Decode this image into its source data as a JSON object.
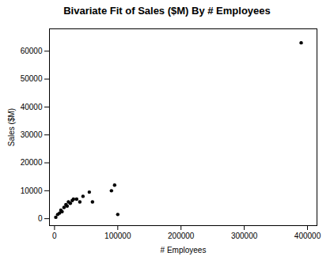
{
  "chart_data": {
    "type": "scatter",
    "title": "Bivariate Fit of Sales ($M) By # Employees",
    "xlabel": "# Employees",
    "ylabel": "Sales ($M)",
    "x": [
      2000,
      5000,
      8000,
      10000,
      12000,
      15000,
      18000,
      20000,
      22000,
      25000,
      28000,
      30000,
      35000,
      40000,
      45000,
      55000,
      60000,
      90000,
      95000,
      100000,
      390000
    ],
    "values": [
      500,
      1500,
      2000,
      3000,
      2500,
      4000,
      5000,
      4500,
      6000,
      5500,
      6500,
      7000,
      7000,
      6000,
      8000,
      9500,
      6000,
      10000,
      12000,
      1500,
      63000
    ],
    "color": "#000000",
    "xlim": [
      -8000,
      415000
    ],
    "ylim": [
      -2500,
      68000
    ],
    "xticks": [
      0,
      100000,
      200000,
      300000,
      400000
    ],
    "yticks": [
      0,
      10000,
      20000,
      30000,
      40000,
      50000,
      60000
    ]
  }
}
